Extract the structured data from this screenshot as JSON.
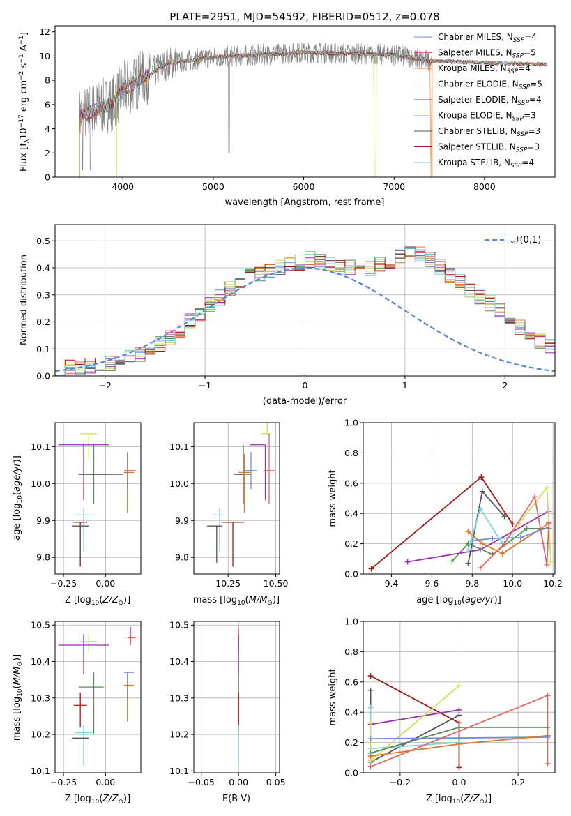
{
  "figure": {
    "title": "PLATE=2951, MJD=54592, FIBERID=0512, z=0.078"
  },
  "colors": {
    "Chabrier MILES": "#6f8fd8",
    "Salpeter MILES": "#e26767",
    "Kroupa MILES": "#e0782a",
    "Chabrier ELODIE": "#5a8a5a",
    "Salpeter ELODIE": "#9a2fb0",
    "Kroupa ELODIE": "#cde05a",
    "Chabrier STELIB": "#555555",
    "Salpeter STELIB": "#a01818",
    "Kroupa STELIB": "#7ad6e0",
    "gaussian": "#5b86d6"
  },
  "chart_data": [
    {
      "id": "spectrum",
      "type": "line",
      "xlabel": "wavelength [Angstrom, rest frame]",
      "ylabel": "Flux [f_λ10^-17 erg cm^-2 s^-1 A^-1]",
      "xlim": [
        3250,
        8780
      ],
      "ylim": [
        0,
        12.5
      ],
      "xticks": [
        4000,
        5000,
        6000,
        7000,
        8000
      ],
      "yticks": [
        0,
        2,
        4,
        6,
        8,
        10,
        12
      ],
      "legend_position": "top-right",
      "grid": false,
      "legend": [
        {
          "label": "Chabrier MILES, N",
          "sub": "SSP",
          "suffix": "=4"
        },
        {
          "label": "Salpeter MILES, N",
          "sub": "SSP",
          "suffix": "=5"
        },
        {
          "label": "Kroupa MILES, N",
          "sub": "SSP",
          "suffix": "=4"
        },
        {
          "label": "Chabrier ELODIE, N",
          "sub": "SSP",
          "suffix": "=5"
        },
        {
          "label": "Salpeter ELODIE, N",
          "sub": "SSP",
          "suffix": "=4"
        },
        {
          "label": "Kroupa ELODIE, N",
          "sub": "SSP",
          "suffix": "=3"
        },
        {
          "label": "Chabrier STELIB, N",
          "sub": "SSP",
          "suffix": "=3"
        },
        {
          "label": "Salpeter STELIB, N",
          "sub": "SSP",
          "suffix": "=3"
        },
        {
          "label": "Kroupa STELIB, N",
          "sub": "SSP",
          "suffix": "=4"
        }
      ],
      "series_note_values": {
        "data_range": [
          3520,
          7420
        ],
        "model_range": [
          3520,
          8700
        ],
        "continuum": [
          [
            3520,
            5.0
          ],
          [
            3900,
            6.2
          ],
          [
            4000,
            7.2
          ],
          [
            4300,
            8.5
          ],
          [
            4500,
            9.4
          ],
          [
            5000,
            9.9
          ],
          [
            5500,
            10.1
          ],
          [
            6000,
            10.3
          ],
          [
            6500,
            10.2
          ],
          [
            7000,
            10.1
          ],
          [
            7400,
            9.6
          ],
          [
            7800,
            9.5
          ],
          [
            8200,
            9.4
          ],
          [
            8700,
            9.3
          ]
        ]
      }
    },
    {
      "id": "residuals",
      "type": "histogram",
      "xlabel": "(data-model)/error",
      "ylabel": "Normed distribution",
      "xlim": [
        -2.5,
        2.5
      ],
      "ylim": [
        0,
        0.56
      ],
      "xticks": [
        -2,
        -1,
        0,
        1,
        2
      ],
      "yticks": [
        0.0,
        0.1,
        0.2,
        0.3,
        0.4,
        0.5
      ],
      "grid": true,
      "legend_position": "top-right",
      "legend": [
        "𝒩(0,1)"
      ],
      "bin_width": 0.1,
      "bin_start": -2.5,
      "mean_profile": [
        0.03,
        0.03,
        0.03,
        0.04,
        0.04,
        0.05,
        0.06,
        0.07,
        0.08,
        0.1,
        0.12,
        0.14,
        0.17,
        0.2,
        0.23,
        0.26,
        0.29,
        0.32,
        0.35,
        0.37,
        0.38,
        0.39,
        0.4,
        0.41,
        0.42,
        0.43,
        0.42,
        0.41,
        0.4,
        0.4,
        0.39,
        0.4,
        0.41,
        0.42,
        0.44,
        0.46,
        0.45,
        0.43,
        0.4,
        0.37,
        0.35,
        0.32,
        0.29,
        0.27,
        0.24,
        0.21,
        0.18,
        0.15,
        0.13,
        0.11,
        0.09,
        0.08,
        0.06,
        0.05,
        0.04,
        0.04,
        0.03,
        0.03,
        0.02,
        0.02
      ]
    },
    {
      "id": "age-Z",
      "type": "scatter",
      "xlabel": "Z [log10(Z/Z☉)]",
      "ylabel": "age [log10(age/yr)]",
      "xlim": [
        -0.3,
        0.21
      ],
      "ylim": [
        9.755,
        10.165
      ],
      "xticks": [
        -0.25,
        0.0
      ],
      "yticks": [
        9.8,
        9.9,
        10.0,
        10.1
      ],
      "grid": true,
      "points": [
        {
          "m": "Kroupa ELODIE",
          "x": -0.1,
          "xerr": [
            0.05,
            0.05
          ],
          "y": 10.135,
          "yerr": [
            0.07,
            0.0
          ]
        },
        {
          "m": "Salpeter ELODIE",
          "x": -0.13,
          "xerr": [
            0.15,
            0.15
          ],
          "y": 10.105,
          "yerr": [
            0.15,
            0.0
          ]
        },
        {
          "m": "Chabrier ELODIE",
          "x": -0.07,
          "xerr": [
            0.09,
            0.09
          ],
          "y": 10.025,
          "yerr": [
            0.08,
            0.08
          ]
        },
        {
          "m": "Chabrier STELIB",
          "x": -0.03,
          "xerr": [
            0.13,
            0.13
          ],
          "y": 10.025,
          "yerr": [
            0.0,
            0.0
          ]
        },
        {
          "m": "Chabrier MILES",
          "x": 0.13,
          "xerr": [
            0.02,
            0.02
          ],
          "y": 10.035,
          "yerr": [
            0.05,
            0.05
          ]
        },
        {
          "m": "Kroupa MILES",
          "x": 0.13,
          "xerr": [
            0.02,
            0.04
          ],
          "y": 10.03,
          "yerr": [
            0.11,
            0.05
          ]
        },
        {
          "m": "Salpeter MILES",
          "x": 0.15,
          "xerr": [
            0.02,
            0.03
          ],
          "y": 10.035,
          "yerr": [
            0.0,
            0.0
          ]
        },
        {
          "m": "Kroupa STELIB",
          "x": -0.13,
          "xerr": [
            0.05,
            0.05
          ],
          "y": 9.915,
          "yerr": [
            0.1,
            0.02
          ]
        },
        {
          "m": "Salpeter STELIB",
          "x": -0.15,
          "xerr": [
            0.04,
            0.04
          ],
          "y": 9.895,
          "yerr": [
            0.12,
            0.0
          ]
        },
        {
          "m": "Chabrier STELIB",
          "x": -0.15,
          "xerr": [
            0.05,
            0.05
          ],
          "y": 9.885,
          "yerr": [
            0.1,
            0.0
          ]
        }
      ]
    },
    {
      "id": "age-mass",
      "type": "scatter",
      "xlabel": "mass [log10(M/M☉)]",
      "ylabel": "",
      "xlim": [
        10.07,
        10.52
      ],
      "ylim": [
        9.755,
        10.165
      ],
      "xticks": [
        10.25,
        10.5
      ],
      "yticks": [
        9.8,
        9.9,
        10.0,
        10.1
      ],
      "grid": true,
      "points": [
        {
          "m": "Kroupa ELODIE",
          "x": 10.455,
          "xerr": [
            0.03,
            0.02
          ],
          "y": 10.135,
          "yerr": [
            0.0,
            0.03
          ]
        },
        {
          "m": "Salpeter ELODIE",
          "x": 10.445,
          "xerr": [
            0.08,
            0.0
          ],
          "y": 10.105,
          "yerr": [
            0.15,
            0.0
          ]
        },
        {
          "m": "Chabrier ELODIE",
          "x": 10.33,
          "xerr": [
            0.04,
            0.04
          ],
          "y": 10.025,
          "yerr": [
            0.08,
            0.08
          ]
        },
        {
          "m": "Chabrier STELIB",
          "x": 10.33,
          "xerr": [
            0.05,
            0.0
          ],
          "y": 10.025,
          "yerr": [
            0.0,
            0.0
          ]
        },
        {
          "m": "Chabrier MILES",
          "x": 10.37,
          "xerr": [
            0.03,
            0.03
          ],
          "y": 10.035,
          "yerr": [
            0.05,
            0.05
          ]
        },
        {
          "m": "Kroupa MILES",
          "x": 10.335,
          "xerr": [
            0.03,
            0.03
          ],
          "y": 10.03,
          "yerr": [
            0.11,
            0.05
          ]
        },
        {
          "m": "Salpeter MILES",
          "x": 10.465,
          "xerr": [
            0.03,
            0.03
          ],
          "y": 10.035,
          "yerr": [
            0.09,
            0.1
          ]
        },
        {
          "m": "Kroupa STELIB",
          "x": 10.205,
          "xerr": [
            0.03,
            0.02
          ],
          "y": 9.915,
          "yerr": [
            0.1,
            0.02
          ]
        },
        {
          "m": "Salpeter STELIB",
          "x": 10.275,
          "xerr": [
            0.06,
            0.06
          ],
          "y": 9.895,
          "yerr": [
            0.12,
            0.0
          ]
        },
        {
          "m": "Chabrier STELIB",
          "x": 10.19,
          "xerr": [
            0.05,
            0.03
          ],
          "y": 9.885,
          "yerr": [
            0.1,
            0.0
          ]
        }
      ]
    },
    {
      "id": "weight-age",
      "type": "line",
      "xlabel": "age [log10(age/yr)]",
      "ylabel": "mass weight",
      "xlim": [
        9.26,
        10.21
      ],
      "ylim": [
        0,
        1.0
      ],
      "xticks": [
        9.4,
        9.6,
        9.8,
        10.0,
        10.2
      ],
      "yticks": [
        0.0,
        0.2,
        0.4,
        0.6,
        0.8,
        1.0
      ],
      "grid": true,
      "series": [
        {
          "m": "Salpeter STELIB",
          "x": [
            9.3,
            9.845,
            10.0
          ],
          "y": [
            0.035,
            0.64,
            0.33
          ]
        },
        {
          "m": "Salpeter ELODIE",
          "x": [
            9.48,
            9.84,
            10.18
          ],
          "y": [
            0.08,
            0.16,
            0.415
          ]
        },
        {
          "m": "Chabrier ELODIE",
          "x": [
            9.7,
            9.78,
            9.9,
            10.07,
            10.18
          ],
          "y": [
            0.085,
            0.2,
            0.13,
            0.3,
            0.3
          ]
        },
        {
          "m": "Chabrier STELIB",
          "x": [
            9.78,
            9.85,
            9.96
          ],
          "y": [
            0.07,
            0.545,
            0.38
          ]
        },
        {
          "m": "Kroupa MILES",
          "x": [
            9.78,
            9.85,
            9.95,
            10.18
          ],
          "y": [
            0.28,
            0.2,
            0.135,
            0.335
          ]
        },
        {
          "m": "Chabrier MILES",
          "x": [
            9.8,
            9.9,
            10.04,
            10.18
          ],
          "y": [
            0.22,
            0.235,
            0.24,
            0.31
          ]
        },
        {
          "m": "Kroupa STELIB",
          "x": [
            9.78,
            9.84,
            9.95
          ],
          "y": [
            0.16,
            0.43,
            0.2
          ]
        },
        {
          "m": "Kroupa ELODIE",
          "x": [
            10.03,
            10.17,
            10.19
          ],
          "y": [
            0.33,
            0.57,
            0.08
          ]
        },
        {
          "m": "Salpeter MILES",
          "x": [
            9.84,
            9.96,
            10.11,
            10.17,
            10.18
          ],
          "y": [
            0.04,
            0.2,
            0.51,
            0.06,
            0.34
          ]
        }
      ]
    },
    {
      "id": "mass-Z",
      "type": "scatter",
      "xlabel": "Z [log10(Z/Z☉)]",
      "ylabel": "mass [log10(M/M☉)]",
      "xlim": [
        -0.3,
        0.21
      ],
      "ylim": [
        10.095,
        10.51
      ],
      "xticks": [
        -0.25,
        0.0
      ],
      "yticks": [
        10.1,
        10.2,
        10.3,
        10.4,
        10.5
      ],
      "grid": true,
      "points": [
        {
          "m": "Kroupa ELODIE",
          "x": -0.1,
          "xerr": [
            0.05,
            0.05
          ],
          "y": 10.455,
          "yerr": [
            0.03,
            0.02
          ]
        },
        {
          "m": "Salpeter MILES",
          "x": 0.15,
          "xerr": [
            0.02,
            0.03
          ],
          "y": 10.465,
          "yerr": [
            0.02,
            0.03
          ]
        },
        {
          "m": "Salpeter ELODIE",
          "x": -0.13,
          "xerr": [
            0.15,
            0.15
          ],
          "y": 10.445,
          "yerr": [
            0.08,
            0.03
          ]
        },
        {
          "m": "Chabrier MILES",
          "x": 0.13,
          "xerr": [
            0.02,
            0.04
          ],
          "y": 10.37,
          "yerr": [
            0.07,
            0.0
          ]
        },
        {
          "m": "Kroupa MILES",
          "x": 0.13,
          "xerr": [
            0.02,
            0.04
          ],
          "y": 10.335,
          "yerr": [
            0.1,
            0.0
          ]
        },
        {
          "m": "Chabrier ELODIE",
          "x": -0.07,
          "xerr": [
            0.09,
            0.06
          ],
          "y": 10.33,
          "yerr": [
            0.13,
            0.04
          ]
        },
        {
          "m": "Salpeter STELIB",
          "x": -0.15,
          "xerr": [
            0.04,
            0.04
          ],
          "y": 10.28,
          "yerr": [
            0.06,
            0.035
          ]
        },
        {
          "m": "Kroupa STELIB",
          "x": -0.13,
          "xerr": [
            0.05,
            0.05
          ],
          "y": 10.205,
          "yerr": [
            0.09,
            0.02
          ]
        },
        {
          "m": "Chabrier STELIB",
          "x": -0.15,
          "xerr": [
            0.05,
            0.05
          ],
          "y": 10.19,
          "yerr": [
            0.0,
            0.0
          ]
        }
      ]
    },
    {
      "id": "mass-ebv",
      "type": "scatter",
      "xlabel": "E(B-V)",
      "ylabel": "",
      "xlim": [
        -0.06,
        0.055
      ],
      "ylim": [
        10.095,
        10.51
      ],
      "xticks": [
        -0.05,
        0.0,
        0.05
      ],
      "yticks": [
        10.1,
        10.2,
        10.3,
        10.4,
        10.5
      ],
      "grid": true,
      "points": [
        {
          "m": "Kroupa ELODIE",
          "x": 0.0,
          "xerr": [
            0,
            0
          ],
          "y": 10.455,
          "yerr": [
            0.03,
            0.03
          ]
        },
        {
          "m": "Salpeter MILES",
          "x": 0.0,
          "xerr": [
            0,
            0
          ],
          "y": 10.465,
          "yerr": [
            0.03,
            0.03
          ]
        },
        {
          "m": "Salpeter ELODIE",
          "x": 0.0,
          "xerr": [
            0,
            0
          ],
          "y": 10.445,
          "yerr": [
            0.08,
            0.03
          ]
        },
        {
          "m": "Chabrier ELODIE",
          "x": 0.0,
          "xerr": [
            0,
            0
          ],
          "y": 10.33,
          "yerr": [
            0.13,
            0.04
          ]
        },
        {
          "m": "Salpeter STELIB",
          "x": 0.0,
          "xerr": [
            0,
            0
          ],
          "y": 10.28,
          "yerr": [
            0.06,
            0.035
          ]
        },
        {
          "m": "Kroupa STELIB",
          "x": 0.0,
          "xerr": [
            0,
            0
          ],
          "y": 10.205,
          "yerr": [
            0.09,
            0.02
          ]
        }
      ]
    },
    {
      "id": "weight-Z",
      "type": "line",
      "xlabel": "Z [log10(Z/Z☉)]",
      "ylabel": "mass weight",
      "xlim": [
        -0.325,
        0.325
      ],
      "ylim": [
        0,
        1.0
      ],
      "xticks": [
        -0.2,
        0.0,
        0.2
      ],
      "yticks": [
        0.0,
        0.2,
        0.4,
        0.6,
        0.8,
        1.0
      ],
      "grid": true,
      "series": [
        {
          "m": "Salpeter STELIB",
          "x": [
            -0.3,
            0.0,
            0.0
          ],
          "y": [
            0.64,
            0.33,
            0.035
          ]
        },
        {
          "m": "Chabrier STELIB",
          "x": [
            -0.3,
            -0.3,
            0.0
          ],
          "y": [
            0.545,
            0.07,
            0.38
          ]
        },
        {
          "m": "Kroupa STELIB",
          "x": [
            -0.3,
            -0.3,
            0.0
          ],
          "y": [
            0.43,
            0.16,
            0.2
          ]
        },
        {
          "m": "Salpeter ELODIE",
          "x": [
            -0.3,
            0.0
          ],
          "y": [
            0.32,
            0.415
          ]
        },
        {
          "m": "Kroupa ELODIE",
          "x": [
            -0.3,
            -0.3,
            0.0
          ],
          "y": [
            0.33,
            0.08,
            0.575
          ]
        },
        {
          "m": "Chabrier ELODIE",
          "x": [
            -0.3,
            0.0,
            0.3
          ],
          "y": [
            0.13,
            0.3,
            0.3
          ]
        },
        {
          "m": "Chabrier MILES",
          "x": [
            -0.3,
            0.3
          ],
          "y": [
            0.225,
            0.235
          ]
        },
        {
          "m": "Kroupa MILES",
          "x": [
            -0.3,
            0.0,
            0.3
          ],
          "y": [
            0.11,
            0.19,
            0.245
          ]
        },
        {
          "m": "Salpeter MILES",
          "x": [
            -0.3,
            0.3,
            0.3
          ],
          "y": [
            0.04,
            0.51,
            0.06
          ]
        }
      ]
    }
  ]
}
